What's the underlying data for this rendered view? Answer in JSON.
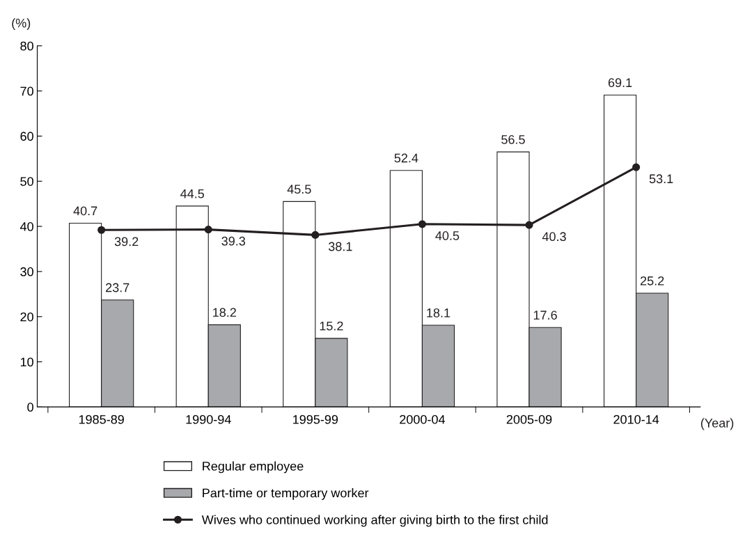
{
  "chart_data": {
    "type": "bar",
    "categories": [
      "1985-89",
      "1990-94",
      "1995-99",
      "2000-04",
      "2005-09",
      "2010-14"
    ],
    "series": [
      {
        "name": "Regular employee",
        "color": "#ffffff",
        "values": [
          40.7,
          44.5,
          45.5,
          52.4,
          56.5,
          69.1
        ]
      },
      {
        "name": "Part-time or temporary worker",
        "color": "#a7a9ac",
        "values": [
          23.7,
          18.2,
          15.2,
          18.1,
          17.6,
          25.2
        ]
      },
      {
        "name": "Wives who continued working after giving birth to the first child",
        "type": "line",
        "color": "#231f20",
        "values": [
          39.2,
          39.3,
          38.1,
          40.5,
          40.3,
          53.1
        ]
      }
    ],
    "xlabel": "(Year)",
    "ylabel": "(%)",
    "ylim": [
      0,
      80
    ],
    "yticks": [
      0,
      10,
      20,
      30,
      40,
      50,
      60,
      70,
      80
    ],
    "data_labels": true,
    "grid": false,
    "legend": "bottom",
    "marker": "circle",
    "line_style": "solid"
  }
}
